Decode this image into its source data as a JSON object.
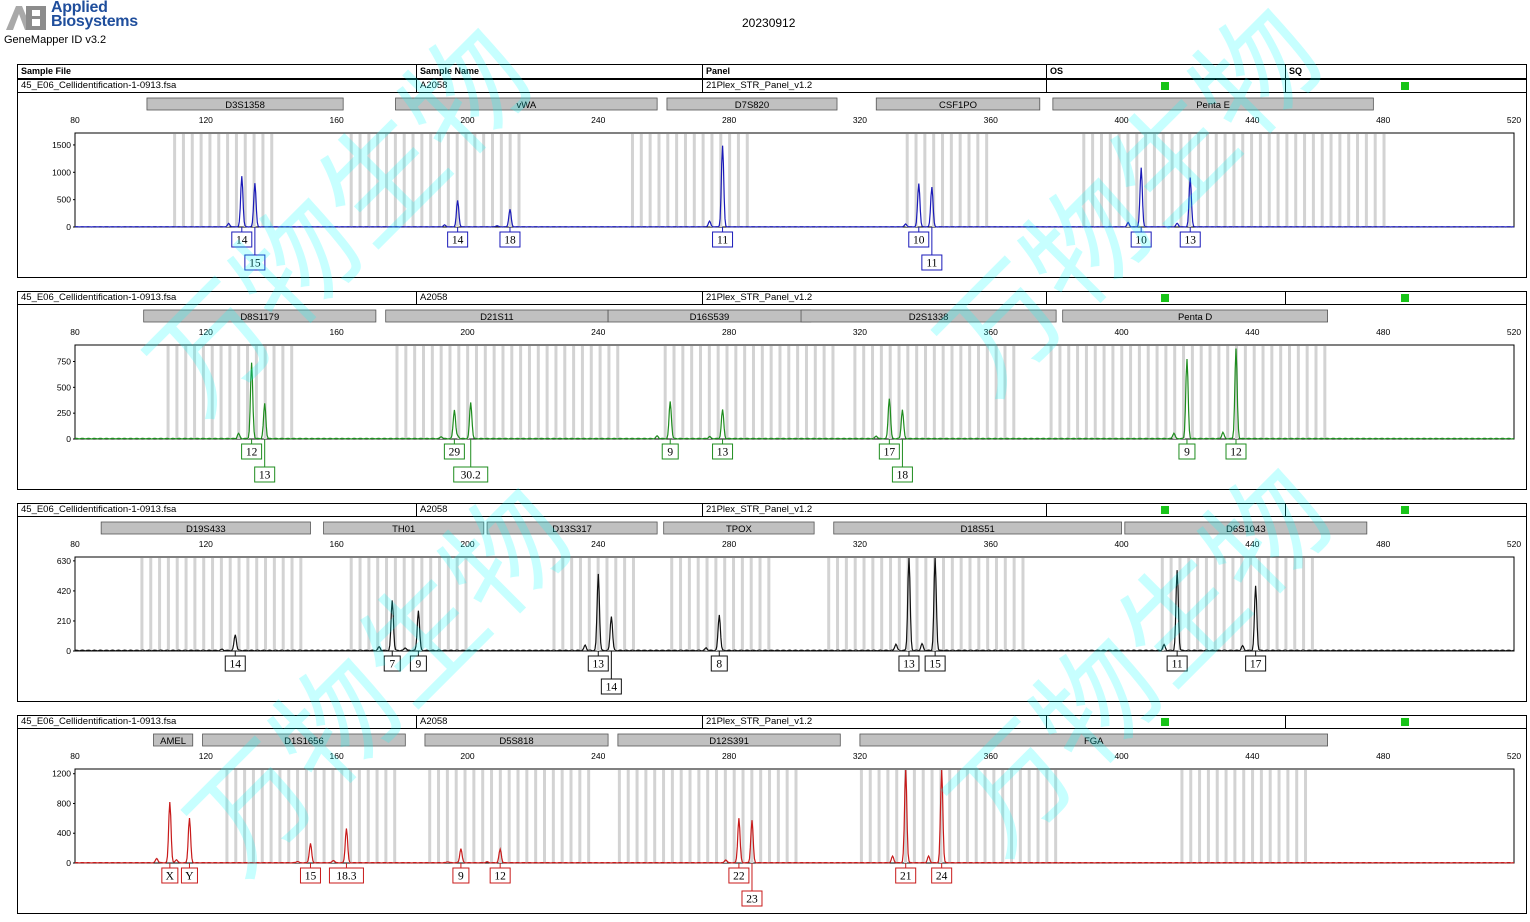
{
  "header": {
    "brand_line1": "Applied",
    "brand_line2": "Biosystems",
    "app_version": "GeneMapper ID v3.2",
    "date": "20230912"
  },
  "columns": {
    "sample_file": "Sample File",
    "sample_name": "Sample Name",
    "panel": "Panel",
    "os": "OS",
    "sq": "SQ"
  },
  "watermark": "万物生物",
  "colors": {
    "qc_pass": "#18c418",
    "bin": "#d3d3d3",
    "marker_box": "#c0c0c0"
  },
  "chart_data": [
    {
      "type": "line",
      "sample_file": "45_E06_Cellidentification-1-0913.fsa",
      "sample_name": "A2058",
      "panel": "21Plex_STR_Panel_v1.2",
      "color": "#1a1ab8",
      "xlim": [
        80,
        520
      ],
      "xticks": [
        80,
        120,
        160,
        200,
        240,
        280,
        320,
        360,
        400,
        440,
        480,
        520
      ],
      "ylim": [
        0,
        1700
      ],
      "yticks": [
        0,
        500,
        1000,
        1500
      ],
      "markers": [
        {
          "name": "D3S1358",
          "from": 102,
          "to": 162
        },
        {
          "name": "vWA",
          "from": 178,
          "to": 258
        },
        {
          "name": "D7S820",
          "from": 261,
          "to": 313
        },
        {
          "name": "CSF1PO",
          "from": 325,
          "to": 375
        },
        {
          "name": "Penta E",
          "from": 379,
          "to": 477
        }
      ],
      "bins": [
        [
          110,
          142
        ],
        [
          164,
          216
        ],
        [
          250,
          286
        ],
        [
          334,
          360
        ],
        [
          388,
          480
        ]
      ],
      "peaks": [
        {
          "x": 131,
          "h": 870,
          "label": "14",
          "row": 0
        },
        {
          "x": 135,
          "h": 800,
          "label": "15",
          "row": 1
        },
        {
          "x": 197,
          "h": 480,
          "label": "14",
          "row": 0
        },
        {
          "x": 213,
          "h": 320,
          "label": "18",
          "row": 0
        },
        {
          "x": 278,
          "h": 1480,
          "label": "11",
          "row": 0
        },
        {
          "x": 338,
          "h": 740,
          "label": "10",
          "row": 0
        },
        {
          "x": 342,
          "h": 730,
          "label": "11",
          "row": 1
        },
        {
          "x": 406,
          "h": 1080,
          "label": "10",
          "row": 0
        },
        {
          "x": 421,
          "h": 900,
          "label": "13",
          "row": 0
        }
      ]
    },
    {
      "type": "line",
      "sample_file": "45_E06_Cellidentification-1-0913.fsa",
      "sample_name": "A2058",
      "panel": "21Plex_STR_Panel_v1.2",
      "color": "#1e8c1e",
      "xlim": [
        80,
        520
      ],
      "xticks": [
        80,
        120,
        160,
        200,
        240,
        280,
        320,
        360,
        400,
        440,
        480,
        520
      ],
      "ylim": [
        0,
        900
      ],
      "yticks": [
        0,
        250,
        500,
        750
      ],
      "markers": [
        {
          "name": "D8S1179",
          "from": 101,
          "to": 172
        },
        {
          "name": "D21S11",
          "from": 175,
          "to": 243
        },
        {
          "name": "D16S539",
          "from": 243,
          "to": 305
        },
        {
          "name": "D2S1338",
          "from": 302,
          "to": 380
        },
        {
          "name": "Penta D",
          "from": 382,
          "to": 463
        }
      ],
      "bins": [
        [
          108,
          148
        ],
        [
          178,
          248
        ],
        [
          260,
          312
        ],
        [
          318,
          368
        ],
        [
          378,
          462
        ]
      ],
      "peaks": [
        {
          "x": 134,
          "h": 710,
          "label": "12",
          "row": 0
        },
        {
          "x": 138,
          "h": 340,
          "label": "13",
          "row": 1
        },
        {
          "x": 196,
          "h": 280,
          "label": "29",
          "row": 0
        },
        {
          "x": 201,
          "h": 350,
          "label": "30.2",
          "row": 1
        },
        {
          "x": 262,
          "h": 360,
          "label": "9",
          "row": 0
        },
        {
          "x": 278,
          "h": 280,
          "label": "13",
          "row": 0
        },
        {
          "x": 329,
          "h": 370,
          "label": "17",
          "row": 0
        },
        {
          "x": 333,
          "h": 280,
          "label": "18",
          "row": 1
        },
        {
          "x": 420,
          "h": 770,
          "label": "9",
          "row": 0
        },
        {
          "x": 435,
          "h": 870,
          "label": "12",
          "row": 0
        }
      ]
    },
    {
      "type": "line",
      "sample_file": "45_E06_Cellidentification-1-0913.fsa",
      "sample_name": "A2058",
      "panel": "21Plex_STR_Panel_v1.2",
      "color": "#111111",
      "xlim": [
        80,
        520
      ],
      "xticks": [
        80,
        120,
        160,
        200,
        240,
        280,
        320,
        360,
        400,
        440,
        480,
        520
      ],
      "ylim": [
        0,
        650
      ],
      "yticks": [
        0,
        210,
        420,
        630
      ],
      "markers": [
        {
          "name": "D19S433",
          "from": 88,
          "to": 152
        },
        {
          "name": "TH01",
          "from": 156,
          "to": 205
        },
        {
          "name": "D13S317",
          "from": 206,
          "to": 258
        },
        {
          "name": "TPOX",
          "from": 260,
          "to": 306
        },
        {
          "name": "D18S51",
          "from": 312,
          "to": 400
        },
        {
          "name": "D6S1043",
          "from": 401,
          "to": 475
        }
      ],
      "bins": [
        [
          100,
          150
        ],
        [
          164,
          200
        ],
        [
          226,
          252
        ],
        [
          262,
          292
        ],
        [
          310,
          372
        ],
        [
          412,
          458
        ]
      ],
      "peaks": [
        {
          "x": 129,
          "h": 110,
          "label": "14",
          "row": 0
        },
        {
          "x": 177,
          "h": 350,
          "label": "7",
          "row": 0
        },
        {
          "x": 185,
          "h": 280,
          "label": "9",
          "row": 0
        },
        {
          "x": 240,
          "h": 520,
          "label": "13",
          "row": 0
        },
        {
          "x": 244,
          "h": 240,
          "label": "14",
          "row": 1
        },
        {
          "x": 277,
          "h": 250,
          "label": "8",
          "row": 0
        },
        {
          "x": 335,
          "h": 650,
          "label": "13",
          "row": 0
        },
        {
          "x": 343,
          "h": 650,
          "label": "15",
          "row": 0
        },
        {
          "x": 417,
          "h": 560,
          "label": "11",
          "row": 0
        },
        {
          "x": 441,
          "h": 450,
          "label": "17",
          "row": 0
        }
      ]
    },
    {
      "type": "line",
      "sample_file": "45_E06_Cellidentification-1-0913.fsa",
      "sample_name": "A2058",
      "panel": "21Plex_STR_Panel_v1.2",
      "color": "#c81a1a",
      "xlim": [
        80,
        520
      ],
      "xticks": [
        80,
        120,
        160,
        200,
        240,
        280,
        320,
        360,
        400,
        440,
        480,
        520
      ],
      "ylim": [
        0,
        1250
      ],
      "yticks": [
        0,
        400,
        800,
        1200
      ],
      "markers": [
        {
          "name": "AMEL",
          "from": 104,
          "to": 116
        },
        {
          "name": "D1S1656",
          "from": 119,
          "to": 181
        },
        {
          "name": "D5S818",
          "from": 187,
          "to": 243
        },
        {
          "name": "D12S391",
          "from": 246,
          "to": 314
        },
        {
          "name": "FGA",
          "from": 320,
          "to": 463
        }
      ],
      "bins": [
        [
          126,
          178
        ],
        [
          188,
          238
        ],
        [
          246,
          300
        ],
        [
          320,
          380
        ],
        [
          418,
          458
        ]
      ],
      "peaks": [
        {
          "x": 109,
          "h": 820,
          "label": "X",
          "row": 0
        },
        {
          "x": 115,
          "h": 600,
          "label": "Y",
          "row": 0
        },
        {
          "x": 152,
          "h": 260,
          "label": "15",
          "row": 0
        },
        {
          "x": 163,
          "h": 460,
          "label": "18.3",
          "row": 0
        },
        {
          "x": 198,
          "h": 190,
          "label": "9",
          "row": 0
        },
        {
          "x": 210,
          "h": 180,
          "label": "12",
          "row": 0
        },
        {
          "x": 283,
          "h": 560,
          "label": "22",
          "row": 0
        },
        {
          "x": 287,
          "h": 570,
          "label": "23",
          "row": 1
        },
        {
          "x": 334,
          "h": 1250,
          "label": "21",
          "row": 0
        },
        {
          "x": 345,
          "h": 1250,
          "label": "24",
          "row": 0
        }
      ]
    }
  ]
}
